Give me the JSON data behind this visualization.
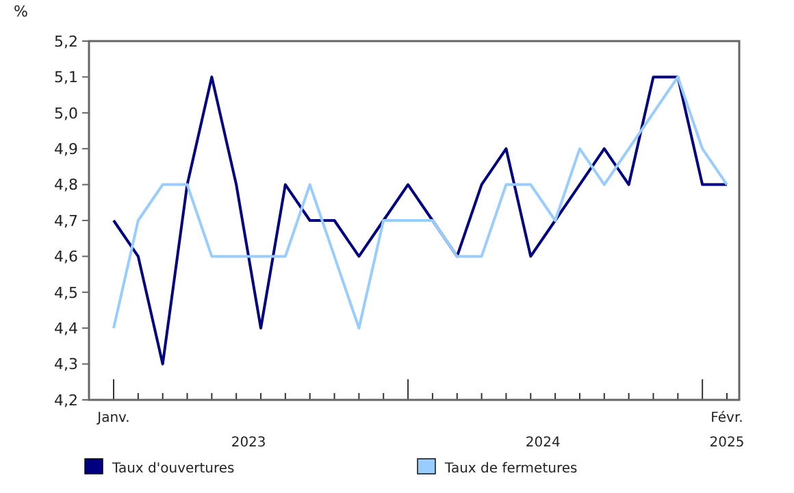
{
  "chart_data": {
    "type": "line",
    "ylabel": "%",
    "categories": [
      "Janv.",
      null,
      null,
      null,
      null,
      null,
      null,
      null,
      null,
      null,
      null,
      null,
      null,
      null,
      null,
      null,
      null,
      null,
      null,
      null,
      null,
      null,
      null,
      null,
      null,
      "Févr."
    ],
    "annotations": [
      "2023",
      "2024",
      "2025"
    ],
    "series": [
      {
        "name": "Taux d'ouvertures",
        "color": "#000080",
        "values": [
          4.7,
          4.6,
          4.3,
          4.8,
          5.1,
          4.8,
          4.4,
          4.8,
          4.7,
          4.7,
          4.6,
          4.7,
          4.8,
          4.7,
          4.6,
          4.8,
          4.9,
          4.6,
          4.7,
          4.8,
          4.9,
          4.8,
          5.1,
          5.1,
          4.8,
          4.8
        ]
      },
      {
        "name": "Taux de fermetures",
        "color": "#99ccff",
        "values": [
          4.4,
          4.7,
          4.8,
          4.8,
          4.6,
          4.6,
          4.6,
          4.6,
          4.8,
          4.6,
          4.4,
          4.7,
          4.7,
          4.7,
          4.6,
          4.6,
          4.8,
          4.8,
          4.7,
          4.9,
          4.8,
          4.9,
          5.0,
          5.1,
          4.9,
          4.8
        ]
      }
    ],
    "ylim": [
      4.2,
      5.2
    ],
    "yticks": [
      {
        "value": 4.2,
        "label": "4,2"
      },
      {
        "value": 4.3,
        "label": "4,3"
      },
      {
        "value": 4.4,
        "label": "4,4"
      },
      {
        "value": 4.5,
        "label": "4,5"
      },
      {
        "value": 4.6,
        "label": "4,6"
      },
      {
        "value": 4.7,
        "label": "4,7"
      },
      {
        "value": 4.8,
        "label": "4,8"
      },
      {
        "value": 4.9,
        "label": "4,9"
      },
      {
        "value": 5.0,
        "label": "5,0"
      },
      {
        "value": 5.1,
        "label": "5,1"
      },
      {
        "value": 5.2,
        "label": "5,2"
      }
    ],
    "grid": false,
    "legend": "bottom",
    "marker": "none",
    "line_style": "solid"
  }
}
